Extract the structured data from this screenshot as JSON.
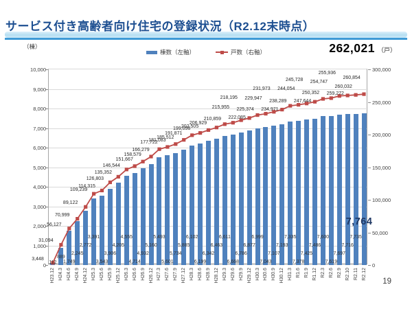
{
  "page": {
    "number": "19"
  },
  "title": "サービス付き高齢者向け住宅の登録状況（R2.12末時点）",
  "chart_data": {
    "type": "bar",
    "subtype": "combo-bar-line",
    "categories": [
      "H23.12",
      "H24.3",
      "H24.6",
      "H24.9",
      "H24.12",
      "H25.3",
      "H25.6",
      "H25.9",
      "H25.12",
      "H26.3",
      "H26.6",
      "H26.9",
      "H26.12",
      "H27.3",
      "H27.6",
      "H27.9",
      "H27.12",
      "H28.3",
      "H28.6",
      "H28.9",
      "H28.12",
      "H29.3",
      "H29.6",
      "H29.9",
      "H29.12",
      "H30.3",
      "H30.6",
      "H30.9",
      "H30.12",
      "H31.3",
      "R1.6",
      "R1.9",
      "R1.12",
      "R2.3",
      "R2.6",
      "R2.9",
      "R2.10",
      "R2.11",
      "R2.12"
    ],
    "series": [
      {
        "name": "棟数（左軸）",
        "type": "bar",
        "axis": "left",
        "color": "#4f81bd",
        "values": [
          112,
          889,
          1749,
          2245,
          2772,
          3391,
          3543,
          3906,
          4205,
          4555,
          4714,
          4932,
          5160,
          5493,
          5601,
          5734,
          5885,
          6102,
          6199,
          6342,
          6463,
          6611,
          6668,
          6786,
          6877,
          6999,
          7043,
          7107,
          7193,
          7335,
          7378,
          7425,
          7486,
          7600,
          7619,
          7697,
          7716,
          7735,
          7764
        ]
      },
      {
        "name": "戸数（右軸）",
        "type": "line",
        "axis": "right",
        "color": "#be4b48",
        "values": [
          3448,
          31094,
          56127,
          70999,
          89122,
          109239,
          114315,
          126803,
          135352,
          146544,
          151667,
          158579,
          166279,
          177722,
          181083,
          185512,
          191871,
          199056,
          202505,
          206929,
          210859,
          215955,
          218195,
          222085,
          225374,
          229947,
          231973,
          234971,
          238289,
          244054,
          245728,
          247644,
          250352,
          254747,
          255936,
          259272,
          260032,
          260854,
          262021
        ]
      }
    ],
    "left_axis": {
      "label": "（棟）",
      "min": 0,
      "max": 10000,
      "step": 1000
    },
    "right_axis": {
      "label": "（戸）",
      "min": 0,
      "max": 300000,
      "step": 50000
    },
    "legend": {
      "position": "top",
      "items": [
        "棟数（左軸）",
        "戸数（右軸）"
      ]
    },
    "grid": "horizontal",
    "callouts": {
      "final_units": "262,021",
      "final_units_suffix": "（戸）",
      "final_buildings": "7,764"
    }
  }
}
